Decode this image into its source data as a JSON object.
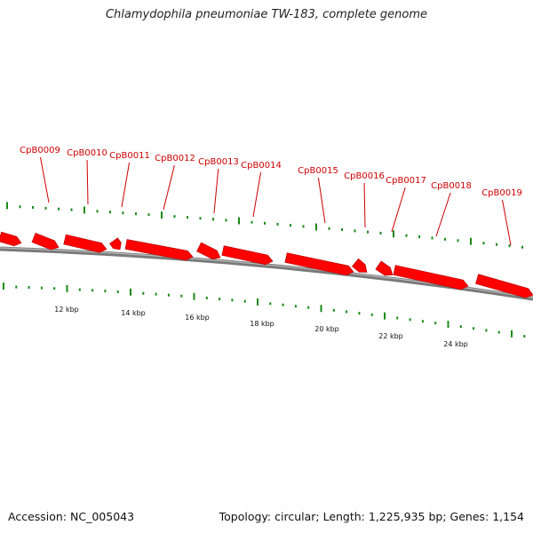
{
  "title": "Chlamydophila pneumoniae TW-183, complete genome",
  "accession": "Accession: NC_005043",
  "summary": "Topology: circular; Length: 1,225,935 bp; Genes: 1,154",
  "colors": {
    "gene": "#ff0000",
    "gene_label": "#cc0000",
    "tick": "#1a8a1a",
    "backbone": "#7a7a7a"
  },
  "genes": [
    "CpB0009",
    "CpB0010",
    "CpB0011",
    "CpB0012",
    "CpB0013",
    "CpB0014",
    "CpB0015",
    "CpB0016",
    "CpB0017",
    "CpB0018",
    "CpB0019"
  ],
  "scale_labels": [
    "12 kbp",
    "14 kbp",
    "16 kbp",
    "18 kbp",
    "20 kbp",
    "22 kbp",
    "24 kbp"
  ]
}
